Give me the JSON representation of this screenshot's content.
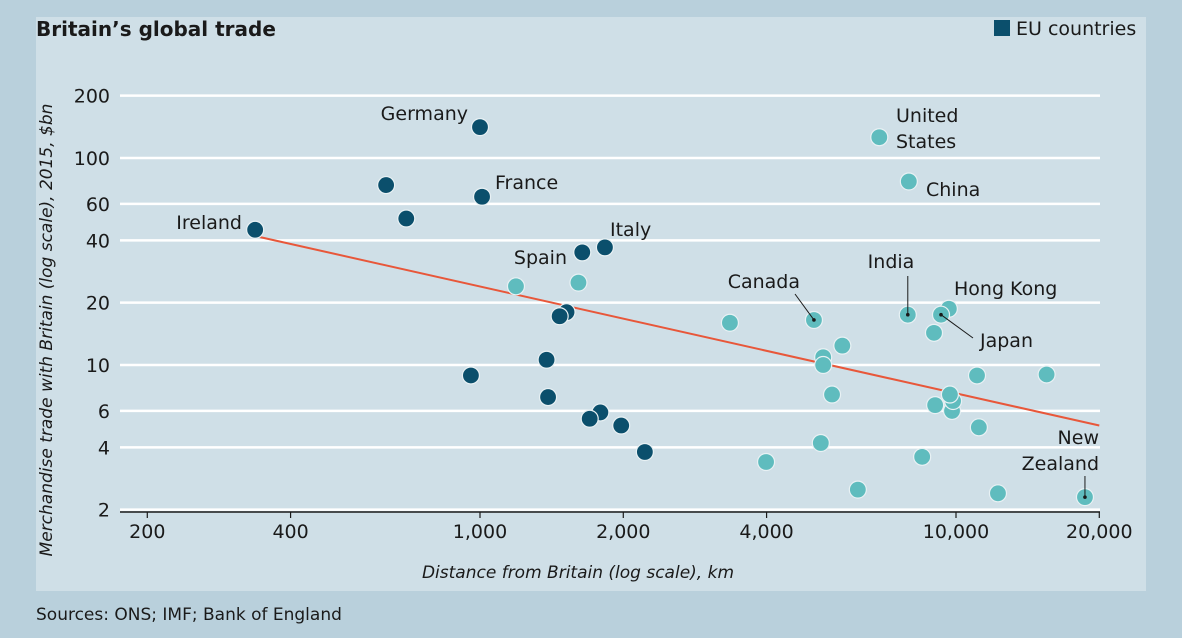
{
  "chart_data": {
    "type": "scatter",
    "title": "Britain’s global trade",
    "xlabel": "Distance from Britain (log scale), km",
    "ylabel": "Merchandise trade with Britain (log scale), 2015, $bn",
    "xscale": "log",
    "yscale": "log",
    "xlim": [
      150,
      20000
    ],
    "ylim": [
      1.8,
      260
    ],
    "xticks": [
      200,
      400,
      1000,
      2000,
      4000,
      10000,
      20000
    ],
    "xtick_labels": [
      "200",
      "400",
      "1,000",
      "2,000",
      "4,000",
      "10,000",
      "20,000"
    ],
    "yticks": [
      2,
      4,
      6,
      10,
      20,
      40,
      60,
      100,
      200
    ],
    "ytick_labels": [
      "2",
      "4",
      "6",
      "10",
      "20",
      "40",
      "60",
      "100",
      "200"
    ],
    "grid": "horizontal",
    "legend": {
      "label": "EU countries",
      "placement": "top-right"
    },
    "colors": {
      "eu": "#0b4f6c",
      "non_eu": "#5fbcbe",
      "trend": "#e8573a",
      "grid": "#ffffff"
    },
    "series": [
      {
        "name": "EU countries",
        "points": [
          {
            "x": 337,
            "y": 45,
            "label": "Ireland"
          },
          {
            "x": 1000,
            "y": 141,
            "label": "Germany"
          },
          {
            "x": 635,
            "y": 74
          },
          {
            "x": 700,
            "y": 51
          },
          {
            "x": 1010,
            "y": 65,
            "label": "France"
          },
          {
            "x": 1830,
            "y": 37,
            "label": "Italy"
          },
          {
            "x": 1640,
            "y": 35,
            "label": "Spain"
          },
          {
            "x": 1520,
            "y": 18
          },
          {
            "x": 1470,
            "y": 17.2
          },
          {
            "x": 1380,
            "y": 10.6
          },
          {
            "x": 957,
            "y": 8.9
          },
          {
            "x": 1390,
            "y": 7.0
          },
          {
            "x": 1790,
            "y": 5.9
          },
          {
            "x": 1700,
            "y": 5.5
          },
          {
            "x": 1980,
            "y": 5.1
          },
          {
            "x": 2220,
            "y": 3.8
          }
        ]
      },
      {
        "points": [
          {
            "x": 6900,
            "y": 126,
            "label": "United States"
          },
          {
            "x": 7960,
            "y": 77,
            "label": "China"
          },
          {
            "x": 1190,
            "y": 24
          },
          {
            "x": 1610,
            "y": 25
          },
          {
            "x": 3350,
            "y": 16
          },
          {
            "x": 5030,
            "y": 16.5,
            "label": "Canada"
          },
          {
            "x": 7920,
            "y": 17.5,
            "label": "India"
          },
          {
            "x": 9660,
            "y": 18.7,
            "label": "Hong Kong"
          },
          {
            "x": 9300,
            "y": 17.5,
            "label": "Japan"
          },
          {
            "x": 8990,
            "y": 14.3
          },
          {
            "x": 5770,
            "y": 12.4
          },
          {
            "x": 5260,
            "y": 10.9
          },
          {
            "x": 5260,
            "y": 10
          },
          {
            "x": 11070,
            "y": 8.9
          },
          {
            "x": 15500,
            "y": 9.0
          },
          {
            "x": 5490,
            "y": 7.2
          },
          {
            "x": 9040,
            "y": 6.4
          },
          {
            "x": 9810,
            "y": 6.0
          },
          {
            "x": 9860,
            "y": 6.7
          },
          {
            "x": 9710,
            "y": 7.2
          },
          {
            "x": 11170,
            "y": 5.0
          },
          {
            "x": 5200,
            "y": 4.2
          },
          {
            "x": 3990,
            "y": 3.4
          },
          {
            "x": 8490,
            "y": 3.6
          },
          {
            "x": 6220,
            "y": 2.5
          },
          {
            "x": 12250,
            "y": 2.4
          },
          {
            "x": 18660,
            "y": 2.3,
            "label": "New Zealand"
          }
        ]
      }
    ],
    "trendline": {
      "x": [
        337,
        20000
      ],
      "y": [
        42,
        5.1
      ]
    },
    "source": "Sources: ONS; IMF; Bank of England"
  }
}
